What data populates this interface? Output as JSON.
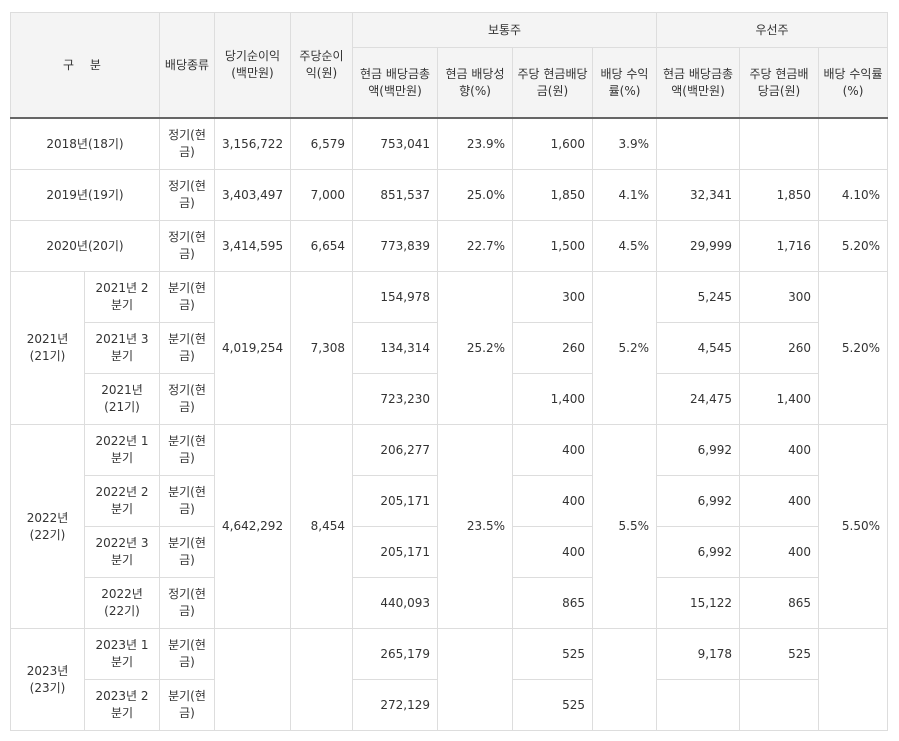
{
  "header": {
    "gubun": "구 분",
    "type": "배당종류",
    "net_income": "당기순이익(백만원)",
    "eps": "주당순이익(원)",
    "common": "보통주",
    "preferred": "우선주",
    "common_cols": [
      "현금 배당금총액(백만원)",
      "현금 배당성향(%)",
      "주당 현금배당금(원)",
      "배당 수익률(%)"
    ],
    "pref_cols": [
      "현금 배당금총액(백만원)",
      "주당 현금배당금(원)",
      "배당 수익률(%)"
    ]
  },
  "types": {
    "regular": "정기(현금)",
    "quarterly": "분기(현금)"
  },
  "rows": {
    "y2018": {
      "label": "2018년(18기)",
      "net_income": "3,156,722",
      "eps": "6,579",
      "c_total": "753,041",
      "c_payout": "23.9%",
      "c_dps": "1,600",
      "c_yield": "3.9%",
      "p_total": "",
      "p_dps": "",
      "p_yield": ""
    },
    "y2019": {
      "label": "2019년(19기)",
      "net_income": "3,403,497",
      "eps": "7,000",
      "c_total": "851,537",
      "c_payout": "25.0%",
      "c_dps": "1,850",
      "c_yield": "4.1%",
      "p_total": "32,341",
      "p_dps": "1,850",
      "p_yield": "4.10%"
    },
    "y2020": {
      "label": "2020년(20기)",
      "net_income": "3,414,595",
      "eps": "6,654",
      "c_total": "773,839",
      "c_payout": "22.7%",
      "c_dps": "1,500",
      "c_yield": "4.5%",
      "p_total": "29,999",
      "p_dps": "1,716",
      "p_yield": "5.20%"
    },
    "y2021": {
      "label": "2021년(21기)",
      "net_income": "4,019,254",
      "eps": "7,308",
      "c_payout": "25.2%",
      "c_yield": "5.2%",
      "p_yield": "5.20%",
      "subs": [
        {
          "label": "2021년 2분기",
          "c_total": "154,978",
          "c_dps": "300",
          "p_total": "5,245",
          "p_dps": "300"
        },
        {
          "label": "2021년 3분기",
          "c_total": "134,314",
          "c_dps": "260",
          "p_total": "4,545",
          "p_dps": "260"
        },
        {
          "label": "2021년(21기)",
          "c_total": "723,230",
          "c_dps": "1,400",
          "p_total": "24,475",
          "p_dps": "1,400"
        }
      ]
    },
    "y2022": {
      "label": "2022년(22기)",
      "net_income": "4,642,292",
      "eps": "8,454",
      "c_payout": "23.5%",
      "c_yield": "5.5%",
      "p_yield": "5.50%",
      "subs": [
        {
          "label": "2022년 1분기",
          "c_total": "206,277",
          "c_dps": "400",
          "p_total": "6,992",
          "p_dps": "400"
        },
        {
          "label": "2022년 2분기",
          "c_total": "205,171",
          "c_dps": "400",
          "p_total": "6,992",
          "p_dps": "400"
        },
        {
          "label": "2022년 3분기",
          "c_total": "205,171",
          "c_dps": "400",
          "p_total": "6,992",
          "p_dps": "400"
        },
        {
          "label": "2022년(22기)",
          "c_total": "440,093",
          "c_dps": "865",
          "p_total": "15,122",
          "p_dps": "865"
        }
      ]
    },
    "y2023": {
      "label": "2023년(23기)",
      "subs": [
        {
          "label": "2023년 1분기",
          "c_total": "265,179",
          "c_dps": "525",
          "p_total": "9,178",
          "p_dps": "525"
        },
        {
          "label": "2023년 2분기",
          "c_total": "272,129",
          "c_dps": "525",
          "p_total": "",
          "p_dps": ""
        }
      ]
    }
  }
}
